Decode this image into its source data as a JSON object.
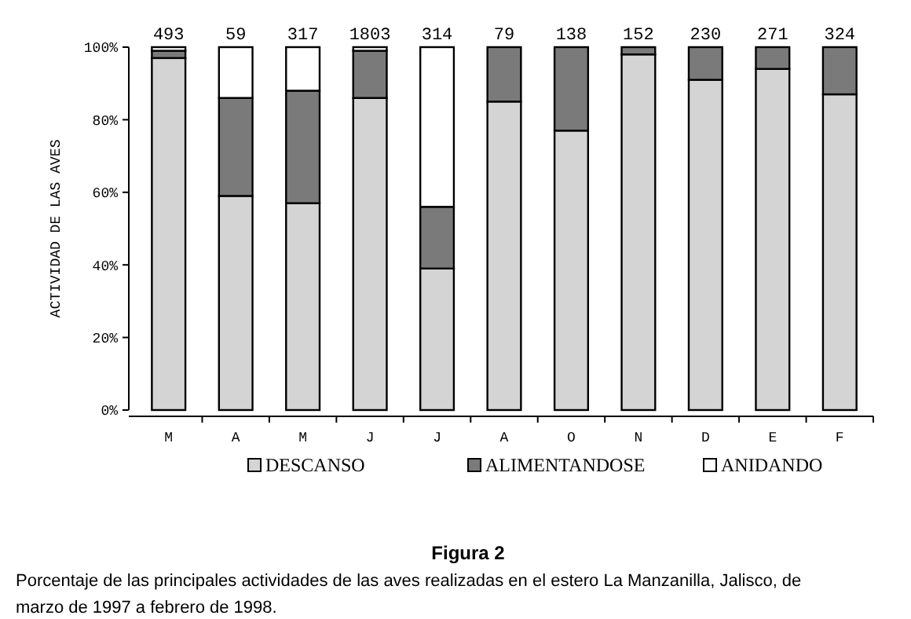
{
  "chart_data": {
    "type": "bar",
    "title": "Figura 2",
    "ylabel": "ACTIVIDAD DE LAS AVES",
    "stacked": true,
    "categories": [
      "M",
      "A",
      "M",
      "J",
      "J",
      "A",
      "O",
      "N",
      "D",
      "E",
      "F"
    ],
    "series": [
      {
        "name": "DESCANSO",
        "color": "#d4d4d4",
        "values": [
          97,
          59,
          57,
          86,
          39,
          85,
          77,
          98,
          91,
          94,
          87
        ]
      },
      {
        "name": "ALIMENTANDOSE",
        "color": "#7a7a7a",
        "values": [
          2,
          27,
          31,
          13,
          17,
          15,
          23,
          2,
          9,
          6,
          13
        ]
      },
      {
        "name": "ANIDANDO",
        "color": "#ffffff",
        "values": [
          1,
          14,
          12,
          1,
          44,
          0,
          0,
          0,
          0,
          0,
          0
        ]
      }
    ],
    "ylim": [
      0,
      100
    ],
    "yticks": [
      {
        "value": 0,
        "label": "0%"
      },
      {
        "value": 20,
        "label": "20%"
      },
      {
        "value": 40,
        "label": "40%"
      },
      {
        "value": 60,
        "label": "60%"
      },
      {
        "value": 80,
        "label": "80%"
      },
      {
        "value": 100,
        "label": "100%"
      }
    ],
    "legend": "bottom",
    "annotations": [
      "493",
      "59",
      "317",
      "1803",
      "314",
      "79",
      "138",
      "152",
      "230",
      "271",
      "324",
      "Porcentaje de las principales actividades de las aves realizadas en el estero La Manzanilla, Jalisco, de marzo de 1997 a febrero de 1998."
    ]
  }
}
